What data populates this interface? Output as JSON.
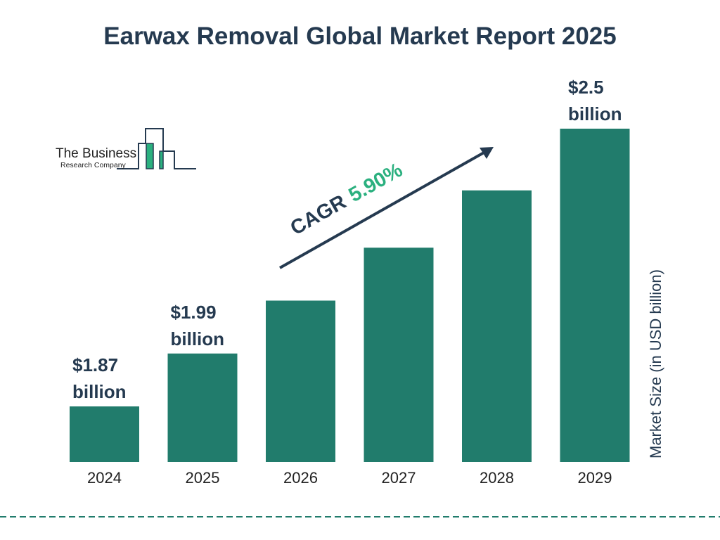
{
  "chart_data": {
    "type": "bar",
    "title": "Earwax Removal Global Market Report 2025",
    "ylabel": "Market Size (in USD billion)",
    "categories": [
      "2024",
      "2025",
      "2026",
      "2027",
      "2028",
      "2029"
    ],
    "values": [
      1.87,
      1.99,
      2.11,
      2.23,
      2.36,
      2.5
    ],
    "data_labels": [
      {
        "category": "2024",
        "line1": "$1.87",
        "line2": "billion"
      },
      {
        "category": "2025",
        "line1": "$1.99",
        "line2": "billion"
      },
      {
        "category": "2029",
        "line1": "$2.5",
        "line2": "billion"
      }
    ],
    "annotation": {
      "prefix": "CAGR",
      "value": "5.90%"
    },
    "bar_color": "#217c6c",
    "cagr_color": "#2bb07f",
    "grid": false
  },
  "logo": {
    "line1": "The Business",
    "line2": "Research Company"
  }
}
